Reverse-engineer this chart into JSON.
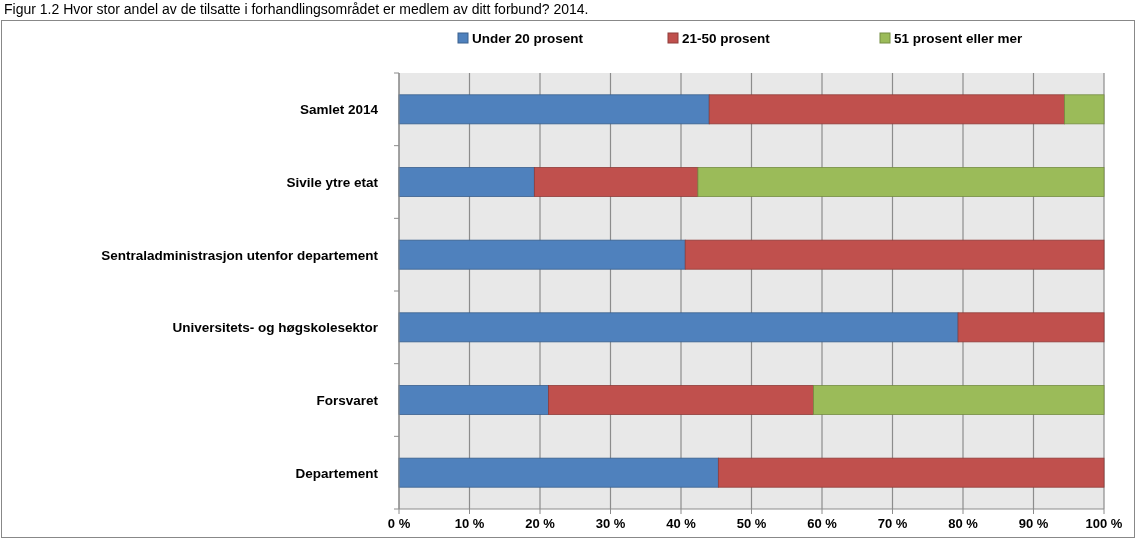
{
  "chart_data": {
    "type": "bar",
    "orientation": "horizontal",
    "stacked": true,
    "title": "Figur 1.2 Hvor stor andel av de tilsatte i forhandlingsområdet er medlem av ditt forbund? 2014.",
    "categories": [
      "Samlet 2014",
      "Sivile ytre etat",
      "Sentraladministrasjon utenfor departement",
      "Universitets- og høgskolesektor",
      "Forsvaret",
      "Departement"
    ],
    "series": [
      {
        "name": "Under 20 prosent",
        "color": "#4f81bd",
        "values": [
          44,
          19.2,
          40.6,
          79.3,
          21.2,
          45.3
        ]
      },
      {
        "name": "21-50 prosent",
        "color": "#c0504d",
        "values": [
          50.4,
          23.2,
          59.4,
          20.7,
          37.6,
          54.7
        ]
      },
      {
        "name": "51 prosent eller mer",
        "color": "#9bbb59",
        "values": [
          5.6,
          57.6,
          0,
          0,
          41.2,
          0
        ]
      }
    ],
    "xlim": [
      0,
      100
    ],
    "xticks": [
      {
        "value": 0,
        "label": "0 %"
      },
      {
        "value": 10,
        "label": "10 %"
      },
      {
        "value": 20,
        "label": "20 %"
      },
      {
        "value": 30,
        "label": "30 %"
      },
      {
        "value": 40,
        "label": "40 %"
      },
      {
        "value": 50,
        "label": "50 %"
      },
      {
        "value": 60,
        "label": "60 %"
      },
      {
        "value": 70,
        "label": "70 %"
      },
      {
        "value": 80,
        "label": "80 %"
      },
      {
        "value": 90,
        "label": "90 %"
      },
      {
        "value": 100,
        "label": "100 %"
      }
    ],
    "grid": "x",
    "legend": "top"
  }
}
